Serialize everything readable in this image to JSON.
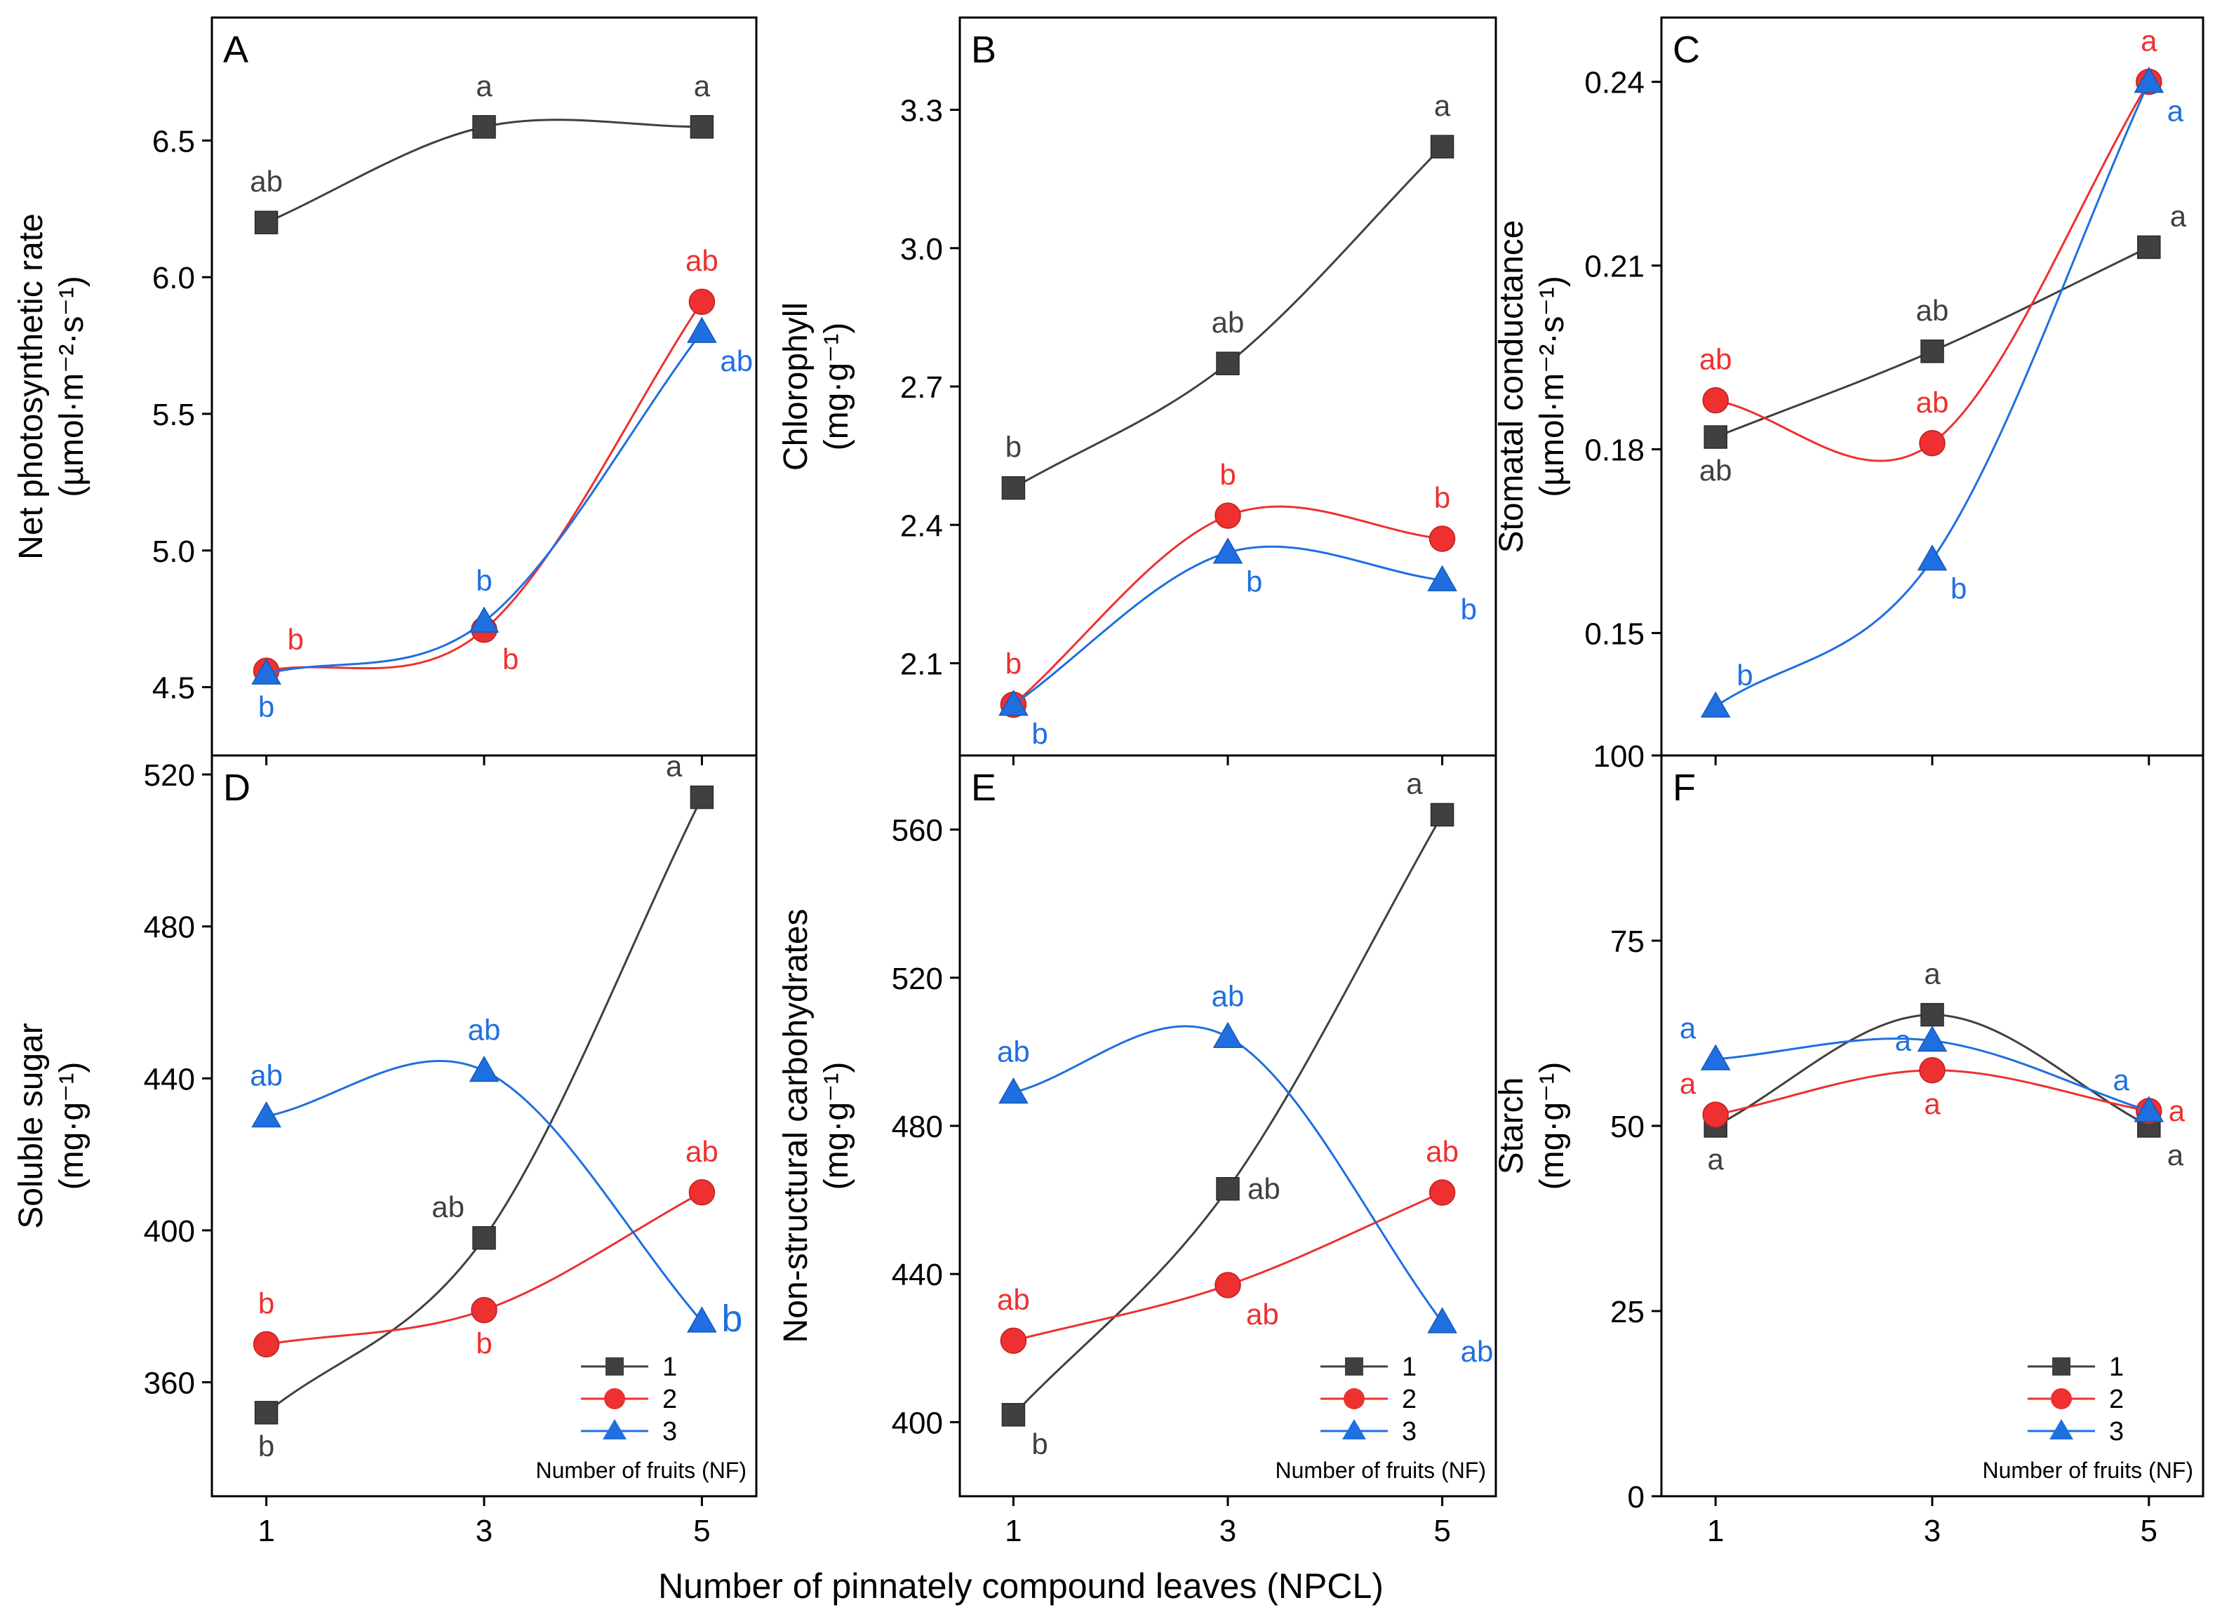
{
  "figure": {
    "shared_xlabel": "Number of pinnately compound leaves (NPCL)",
    "legend_title": "Number of fruits (NF)"
  },
  "chart_data": [
    {
      "id": "A",
      "type": "line",
      "panel_label": "A",
      "ylabel_lines": [
        "Net photosynthetic rate",
        "(µmol·m⁻²·s⁻¹)"
      ],
      "x_ticks": [
        "1",
        "3",
        "5"
      ],
      "x": [
        1,
        3,
        5
      ],
      "xlim": [
        0.5,
        5.5
      ],
      "ylim": [
        4.25,
        6.95
      ],
      "y_ticks": [
        "4.5",
        "5.0",
        "5.5",
        "6.0",
        "6.5"
      ],
      "y_tick_values": [
        4.5,
        5.0,
        5.5,
        6.0,
        6.5
      ],
      "show_x_ticklabels": false,
      "show_legend": false,
      "series": [
        {
          "name": "1",
          "color": "#404040",
          "marker": "square",
          "values": [
            6.2,
            6.55,
            6.55
          ],
          "letters": [
            "ab",
            "a",
            "a"
          ],
          "letter_pos": [
            "above",
            "above",
            "above"
          ]
        },
        {
          "name": "2",
          "color": "#ee3030",
          "marker": "circle",
          "values": [
            4.56,
            4.71,
            5.91
          ],
          "letters": [
            "b",
            "b",
            "ab"
          ],
          "letter_pos": [
            "above-right",
            "below-right",
            "above"
          ]
        },
        {
          "name": "3",
          "color": "#1f6fe0",
          "marker": "triangle",
          "values": [
            4.55,
            4.74,
            5.8
          ],
          "letters": [
            "b",
            "b",
            "ab"
          ],
          "letter_pos": [
            "below",
            "above",
            "below-right"
          ]
        }
      ]
    },
    {
      "id": "B",
      "type": "line",
      "panel_label": "B",
      "ylabel_lines": [
        "Chlorophyll",
        "(mg·g⁻¹)"
      ],
      "x_ticks": [
        "1",
        "3",
        "5"
      ],
      "x": [
        1,
        3,
        5
      ],
      "xlim": [
        0.5,
        5.5
      ],
      "ylim": [
        1.9,
        3.5
      ],
      "y_ticks": [
        "2.1",
        "2.4",
        "2.7",
        "3.0",
        "3.3"
      ],
      "y_tick_values": [
        2.1,
        2.4,
        2.7,
        3.0,
        3.3
      ],
      "show_x_ticklabels": false,
      "show_legend": false,
      "series": [
        {
          "name": "1",
          "color": "#404040",
          "marker": "square",
          "values": [
            2.48,
            2.75,
            3.22
          ],
          "letters": [
            "b",
            "ab",
            "a"
          ],
          "letter_pos": [
            "above",
            "above",
            "above"
          ]
        },
        {
          "name": "2",
          "color": "#ee3030",
          "marker": "circle",
          "values": [
            2.01,
            2.42,
            2.37
          ],
          "letters": [
            "b",
            "b",
            "b"
          ],
          "letter_pos": [
            "above",
            "above",
            "above"
          ]
        },
        {
          "name": "3",
          "color": "#1f6fe0",
          "marker": "triangle",
          "values": [
            2.01,
            2.34,
            2.28
          ],
          "letters": [
            "b",
            "b",
            "b"
          ],
          "letter_pos": [
            "below-right",
            "below-right",
            "below-right"
          ]
        }
      ]
    },
    {
      "id": "C",
      "type": "line",
      "panel_label": "C",
      "ylabel_lines": [
        "Stomatal conductance",
        "(µmol·m⁻²·s⁻¹)"
      ],
      "x_ticks": [
        "1",
        "3",
        "5"
      ],
      "x": [
        1,
        3,
        5
      ],
      "xlim": [
        0.5,
        5.5
      ],
      "ylim": [
        0.13,
        0.2505
      ],
      "y_ticks": [
        "0.15",
        "0.18",
        "0.21",
        "0.24"
      ],
      "y_tick_values": [
        0.15,
        0.18,
        0.21,
        0.24
      ],
      "show_x_ticklabels": false,
      "show_legend": false,
      "series": [
        {
          "name": "1",
          "color": "#404040",
          "marker": "square",
          "values": [
            0.182,
            0.196,
            0.213
          ],
          "letters": [
            "ab",
            "ab",
            "a"
          ],
          "letter_pos": [
            "below",
            "above",
            "above-right"
          ]
        },
        {
          "name": "2",
          "color": "#ee3030",
          "marker": "circle",
          "values": [
            0.188,
            0.181,
            0.24
          ],
          "letters": [
            "ab",
            "ab",
            "a"
          ],
          "letter_pos": [
            "above",
            "above",
            "above"
          ]
        },
        {
          "name": "3",
          "color": "#1f6fe0",
          "marker": "triangle",
          "values": [
            0.138,
            0.162,
            0.24
          ],
          "letters": [
            "b",
            "b",
            "a"
          ],
          "letter_pos": [
            "above-right",
            "below-right",
            "below-right"
          ]
        }
      ]
    },
    {
      "id": "D",
      "type": "line",
      "panel_label": "D",
      "ylabel_lines": [
        "Soluble sugar",
        "(mg·g⁻¹)"
      ],
      "x_ticks": [
        "1",
        "3",
        "5"
      ],
      "x": [
        1,
        3,
        5
      ],
      "xlim": [
        0.5,
        5.5
      ],
      "ylim": [
        330,
        525
      ],
      "y_ticks": [
        "360",
        "400",
        "440",
        "480",
        "520"
      ],
      "y_tick_values": [
        360,
        400,
        440,
        480,
        520
      ],
      "show_x_ticklabels": true,
      "show_legend": true,
      "series": [
        {
          "name": "1",
          "color": "#404040",
          "marker": "square",
          "values": [
            352,
            398,
            514
          ],
          "letters": [
            "b",
            "ab",
            "a"
          ],
          "letter_pos": [
            "below",
            "above-left",
            "above-left"
          ]
        },
        {
          "name": "2",
          "color": "#ee3030",
          "marker": "circle",
          "values": [
            370,
            379,
            410
          ],
          "letters": [
            "b",
            "b",
            "ab"
          ],
          "letter_pos": [
            "above",
            "below",
            "above"
          ]
        },
        {
          "name": "3",
          "color": "#1f6fe0",
          "marker": "triangle",
          "values": [
            430,
            442,
            376
          ],
          "letters": [
            "ab",
            "ab",
            "b"
          ],
          "letter_pos": [
            "above",
            "above",
            "right"
          ]
        }
      ]
    },
    {
      "id": "E",
      "type": "line",
      "panel_label": "E",
      "ylabel_lines": [
        "Non-structural carbohydrates",
        "(mg·g⁻¹)"
      ],
      "x_ticks": [
        "1",
        "3",
        "5"
      ],
      "x": [
        1,
        3,
        5
      ],
      "xlim": [
        0.5,
        5.5
      ],
      "ylim": [
        380,
        580
      ],
      "y_ticks": [
        "400",
        "440",
        "480",
        "520",
        "560"
      ],
      "y_tick_values": [
        400,
        440,
        480,
        520,
        560
      ],
      "show_x_ticklabels": true,
      "show_legend": true,
      "series": [
        {
          "name": "1",
          "color": "#404040",
          "marker": "square",
          "values": [
            402,
            463,
            564
          ],
          "letters": [
            "b",
            "ab",
            "a"
          ],
          "letter_pos": [
            "below-right",
            "right",
            "above-left"
          ]
        },
        {
          "name": "2",
          "color": "#ee3030",
          "marker": "circle",
          "values": [
            422,
            437,
            462
          ],
          "letters": [
            "ab",
            "ab",
            "ab"
          ],
          "letter_pos": [
            "above",
            "below-right",
            "above"
          ]
        },
        {
          "name": "3",
          "color": "#1f6fe0",
          "marker": "triangle",
          "values": [
            489,
            504,
            427
          ],
          "letters": [
            "ab",
            "ab",
            "ab"
          ],
          "letter_pos": [
            "above",
            "above",
            "below-right"
          ]
        }
      ]
    },
    {
      "id": "F",
      "type": "line",
      "panel_label": "F",
      "ylabel_lines": [
        "Starch",
        "(mg·g⁻¹)"
      ],
      "x_ticks": [
        "1",
        "3",
        "5"
      ],
      "x": [
        1,
        3,
        5
      ],
      "xlim": [
        0.5,
        5.5
      ],
      "ylim": [
        0,
        100
      ],
      "y_ticks": [
        "0",
        "25",
        "50",
        "75",
        "100"
      ],
      "y_tick_values": [
        0,
        25,
        50,
        75,
        100
      ],
      "show_x_ticklabels": true,
      "show_legend": true,
      "series": [
        {
          "name": "1",
          "color": "#404040",
          "marker": "square",
          "values": [
            50,
            65,
            50
          ],
          "letters": [
            "a",
            "a",
            "a"
          ],
          "letter_pos": [
            "below",
            "above",
            "below-right"
          ]
        },
        {
          "name": "2",
          "color": "#ee3030",
          "marker": "circle",
          "values": [
            51.5,
            57.5,
            52
          ],
          "letters": [
            "a",
            "a",
            "a"
          ],
          "letter_pos": [
            "above-left",
            "below",
            "right"
          ]
        },
        {
          "name": "3",
          "color": "#1f6fe0",
          "marker": "triangle",
          "values": [
            59,
            61.5,
            52
          ],
          "letters": [
            "a",
            "a",
            "a"
          ],
          "letter_pos": [
            "above-left",
            "left",
            "above-left"
          ]
        }
      ]
    }
  ]
}
